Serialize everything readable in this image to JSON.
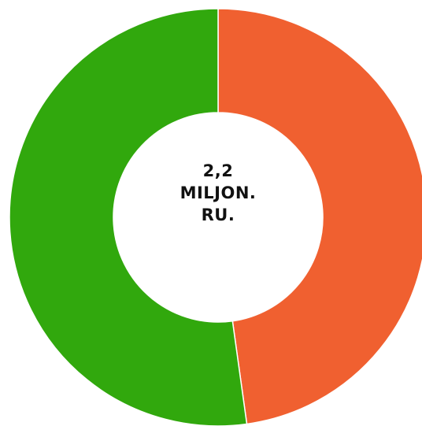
{
  "chart_data": {
    "type": "pie",
    "variant": "donut",
    "center_text": [
      "2,2",
      "MILJON.",
      "RU."
    ],
    "slices": [
      {
        "value": 47.8,
        "color": "#f06030"
      },
      {
        "value": 52.2,
        "color": "#31a80d"
      }
    ],
    "start_angle_deg": 0,
    "legend": false
  }
}
